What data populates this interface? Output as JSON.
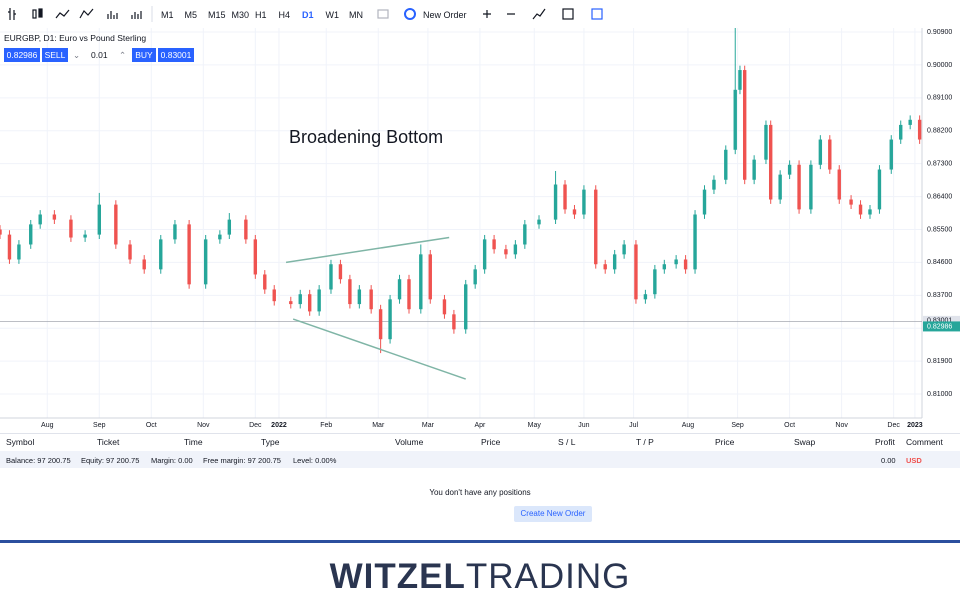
{
  "toolbar": {
    "timeframes": [
      "M1",
      "M5",
      "M15",
      "M30",
      "H1",
      "H4",
      "D1",
      "W1",
      "MN"
    ],
    "active_timeframe": "D1",
    "new_order": "New Order"
  },
  "symbol": {
    "title": "EURGBP, D1: Euro vs Pound Sterling",
    "sell_price": "0.82986",
    "sell": "SELL",
    "lot": "0.01",
    "buy": "BUY",
    "buy_price": "0.83001"
  },
  "chart_data": {
    "type": "candlestick",
    "annotation": "Broadening Bottom",
    "x": [
      0,
      4,
      8,
      13,
      17,
      23,
      30,
      36,
      42,
      49,
      55,
      61,
      68,
      74,
      80,
      87,
      93,
      97,
      104,
      108,
      112,
      116,
      123,
      127,
      131,
      135,
      140,
      144,
      148,
      152,
      157,
      161,
      165,
      169,
      173,
      178,
      182,
      188,
      192,
      197,
      201,
      205,
      209,
      214,
      218,
      222,
      228,
      235,
      239,
      243,
      247,
      252,
      256,
      260,
      264,
      269,
      273,
      277,
      281,
      286,
      290,
      294,
      298,
      302,
      307,
      311,
      313,
      315,
      319,
      324,
      326,
      330,
      334,
      338,
      343,
      347,
      351,
      355,
      360,
      364,
      368,
      372,
      377,
      381,
      385,
      389
    ],
    "open": [
      0.855,
      0.8536,
      0.8468,
      0.8509,
      0.8564,
      0.8591,
      0.8577,
      0.8528,
      0.8536,
      0.8618,
      0.8509,
      0.8468,
      0.8441,
      0.8523,
      0.8564,
      0.84,
      0.8523,
      0.8536,
      0.8577,
      0.8523,
      0.8427,
      0.8386,
      0.8354,
      0.8346,
      0.8373,
      0.8326,
      0.8386,
      0.8455,
      0.8414,
      0.8346,
      0.8386,
      0.8332,
      0.825,
      0.8359,
      0.8414,
      0.8332,
      0.8482,
      0.8359,
      0.8318,
      0.8277,
      0.84,
      0.8441,
      0.8523,
      0.8496,
      0.8482,
      0.8509,
      0.8564,
      0.8577,
      0.8673,
      0.8605,
      0.8591,
      0.8659,
      0.8455,
      0.8441,
      0.8482,
      0.8509,
      0.8359,
      0.8373,
      0.8441,
      0.8455,
      0.8468,
      0.8441,
      0.8591,
      0.8659,
      0.8686,
      0.8768,
      0.8932,
      0.8986,
      0.8686,
      0.8741,
      0.8836,
      0.8632,
      0.87,
      0.8727,
      0.8605,
      0.8727,
      0.8796,
      0.8714,
      0.8632,
      0.8618,
      0.8591,
      0.8605,
      0.8714,
      0.8796,
      0.8836,
      0.885
    ],
    "high": [
      0.8562,
      0.8548,
      0.8521,
      0.8576,
      0.8603,
      0.8603,
      0.8589,
      0.8548,
      0.865,
      0.863,
      0.8521,
      0.848,
      0.8535,
      0.8576,
      0.8576,
      0.8535,
      0.8548,
      0.8595,
      0.8589,
      0.8535,
      0.8439,
      0.8398,
      0.8366,
      0.8385,
      0.8385,
      0.8398,
      0.8467,
      0.8467,
      0.8426,
      0.8398,
      0.8398,
      0.8344,
      0.8371,
      0.8426,
      0.8426,
      0.8509,
      0.8494,
      0.8371,
      0.833,
      0.8412,
      0.8453,
      0.8535,
      0.8535,
      0.8508,
      0.8521,
      0.8576,
      0.8589,
      0.871,
      0.8685,
      0.8617,
      0.8671,
      0.8671,
      0.8467,
      0.8494,
      0.8521,
      0.8521,
      0.8385,
      0.8453,
      0.8467,
      0.848,
      0.848,
      0.8603,
      0.8671,
      0.8698,
      0.878,
      0.9101,
      0.8998,
      0.8998,
      0.8753,
      0.8848,
      0.8848,
      0.8712,
      0.8739,
      0.8739,
      0.8739,
      0.8808,
      0.8808,
      0.8726,
      0.8644,
      0.863,
      0.8617,
      0.8726,
      0.8808,
      0.8848,
      0.8862,
      0.8862
    ],
    "low": [
      0.8524,
      0.8456,
      0.8456,
      0.8497,
      0.8552,
      0.8565,
      0.8516,
      0.8516,
      0.8524,
      0.8497,
      0.8456,
      0.8429,
      0.8429,
      0.8511,
      0.8388,
      0.8388,
      0.8511,
      0.8524,
      0.8511,
      0.8415,
      0.8374,
      0.8342,
      0.8334,
      0.8334,
      0.8314,
      0.8314,
      0.8374,
      0.8402,
      0.8334,
      0.8334,
      0.832,
      0.8212,
      0.8238,
      0.8347,
      0.832,
      0.832,
      0.8347,
      0.8306,
      0.8265,
      0.8265,
      0.8388,
      0.8429,
      0.8484,
      0.847,
      0.847,
      0.8497,
      0.8552,
      0.8565,
      0.8593,
      0.8579,
      0.8579,
      0.8443,
      0.8429,
      0.8429,
      0.847,
      0.8347,
      0.8347,
      0.8361,
      0.8429,
      0.8443,
      0.8429,
      0.8429,
      0.8579,
      0.8647,
      0.8674,
      0.8756,
      0.892,
      0.8674,
      0.8674,
      0.8729,
      0.862,
      0.862,
      0.8688,
      0.8593,
      0.8593,
      0.8715,
      0.8702,
      0.862,
      0.8606,
      0.8579,
      0.8579,
      0.8593,
      0.8702,
      0.8784,
      0.8824,
      0.8784
    ],
    "close": [
      0.8536,
      0.8468,
      0.8509,
      0.8564,
      0.8591,
      0.8577,
      0.8528,
      0.8536,
      0.8618,
      0.8509,
      0.8468,
      0.8441,
      0.8523,
      0.8564,
      0.84,
      0.8523,
      0.8536,
      0.8577,
      0.8523,
      0.8427,
      0.8386,
      0.8354,
      0.8346,
      0.8373,
      0.8326,
      0.8386,
      0.8455,
      0.8414,
      0.8346,
      0.8386,
      0.8332,
      0.825,
      0.8359,
      0.8414,
      0.8332,
      0.8482,
      0.8359,
      0.8318,
      0.8277,
      0.84,
      0.8441,
      0.8523,
      0.8496,
      0.8482,
      0.8509,
      0.8564,
      0.8577,
      0.8673,
      0.8605,
      0.8591,
      0.8659,
      0.8455,
      0.8441,
      0.8482,
      0.8509,
      0.8359,
      0.8373,
      0.8441,
      0.8455,
      0.8468,
      0.8441,
      0.8591,
      0.8659,
      0.8686,
      0.8768,
      0.8932,
      0.8986,
      0.8686,
      0.8741,
      0.8836,
      0.8632,
      0.87,
      0.8727,
      0.8605,
      0.8727,
      0.8796,
      0.8714,
      0.8632,
      0.8618,
      0.8591,
      0.8605,
      0.8714,
      0.8796,
      0.8836,
      0.885,
      0.8796
    ],
    "up_color": "#26a69a",
    "down_color": "#ef5350",
    "trendlines": [
      {
        "x": [
          121,
          190
        ],
        "y": [
          0.846,
          0.8528
        ]
      },
      {
        "x": [
          124,
          197
        ],
        "y": [
          0.8305,
          0.8141
        ]
      }
    ],
    "trendline_color": "#7fb5a6",
    "bid": 0.82986,
    "ask": 0.83001,
    "xlim": [
      0,
      390
    ],
    "xticks": [
      {
        "value": 20,
        "label": "Aug"
      },
      {
        "value": 42,
        "label": "Sep"
      },
      {
        "value": 64,
        "label": "Oct"
      },
      {
        "value": 86,
        "label": "Nov"
      },
      {
        "value": 108,
        "label": "Dec"
      },
      {
        "value": 118,
        "label": "2022"
      },
      {
        "value": 138,
        "label": "Feb"
      },
      {
        "value": 160,
        "label": "Mar"
      },
      {
        "value": 181,
        "label": "Mar"
      },
      {
        "value": 203,
        "label": "Apr"
      },
      {
        "value": 226,
        "label": "May"
      },
      {
        "value": 247,
        "label": "Jun"
      },
      {
        "value": 268,
        "label": "Jul"
      },
      {
        "value": 291,
        "label": "Aug"
      },
      {
        "value": 312,
        "label": "Sep"
      },
      {
        "value": 334,
        "label": "Oct"
      },
      {
        "value": 356,
        "label": "Nov"
      },
      {
        "value": 378,
        "label": "Dec"
      },
      {
        "value": 387,
        "label": "2023"
      }
    ],
    "ylim": [
      0.80345,
      0.9101
    ],
    "yticks": [
      {
        "value": 0.909,
        "label": "0.90900"
      },
      {
        "value": 0.9,
        "label": "0.90000"
      },
      {
        "value": 0.891,
        "label": "0.89100"
      },
      {
        "value": 0.882,
        "label": "0.88200"
      },
      {
        "value": 0.873,
        "label": "0.87300"
      },
      {
        "value": 0.864,
        "label": "0.86400"
      },
      {
        "value": 0.855,
        "label": "0.85500"
      },
      {
        "value": 0.846,
        "label": "0.84600"
      },
      {
        "value": 0.837,
        "label": "0.83700"
      },
      {
        "value": 0.828,
        "label": "0.82800"
      },
      {
        "value": 0.819,
        "label": "0.81900"
      },
      {
        "value": 0.81,
        "label": "0.81000"
      }
    ],
    "grid": true
  },
  "positions": {
    "headers": [
      "Symbol",
      "Ticket",
      "Time",
      "Type",
      "Volume",
      "Price",
      "S / L",
      "T / P",
      "Price",
      "Swap",
      "Profit",
      "Comment"
    ],
    "balance": [
      "Balance: 97 200.75",
      "Equity: 97 200.75",
      "Margin: 0.00",
      "Free margin: 97 200.75",
      "Level: 0.00%"
    ],
    "profit": "0.00",
    "currency": "USD",
    "empty_message": "You don't have any positions",
    "create_button": "Create New Order"
  },
  "footer": {
    "brand_bold": "WITZEL",
    "brand_light": "TRADING"
  }
}
